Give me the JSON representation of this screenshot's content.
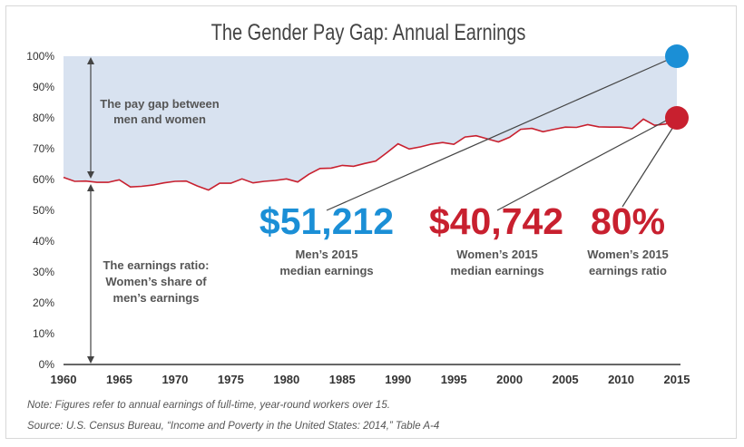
{
  "chart_data": {
    "type": "area",
    "title": "The Gender Pay Gap: Annual Earnings",
    "xlim": [
      1960,
      2015
    ],
    "ylim": [
      0,
      100
    ],
    "x_ticks": [
      1960,
      1965,
      1970,
      1975,
      1980,
      1985,
      1990,
      1995,
      2000,
      2005,
      2010,
      2015
    ],
    "y_ticks": [
      0,
      10,
      20,
      30,
      40,
      50,
      60,
      70,
      80,
      90,
      100
    ],
    "y_tick_labels": [
      "0%",
      "10%",
      "20%",
      "30%",
      "40%",
      "50%",
      "60%",
      "70%",
      "80%",
      "90%",
      "100%"
    ],
    "series": [
      {
        "color": "#c8202f",
        "x": [
          1960,
          1961,
          1962,
          1963,
          1964,
          1965,
          1966,
          1967,
          1968,
          1969,
          1970,
          1971,
          1972,
          1973,
          1974,
          1975,
          1976,
          1977,
          1978,
          1979,
          1980,
          1981,
          1982,
          1983,
          1984,
          1985,
          1986,
          1987,
          1988,
          1989,
          1990,
          1991,
          1992,
          1993,
          1994,
          1995,
          1996,
          1997,
          1998,
          1999,
          2000,
          2001,
          2002,
          2003,
          2004,
          2005,
          2006,
          2007,
          2008,
          2009,
          2010,
          2011,
          2012,
          2013,
          2014,
          2015
        ],
        "y": [
          60.7,
          59.4,
          59.5,
          59.1,
          59.1,
          59.9,
          57.6,
          57.8,
          58.2,
          58.9,
          59.4,
          59.5,
          57.9,
          56.6,
          58.8,
          58.8,
          60.2,
          58.9,
          59.4,
          59.7,
          60.2,
          59.2,
          61.7,
          63.6,
          63.7,
          64.6,
          64.3,
          65.2,
          66.0,
          68.7,
          71.6,
          69.9,
          70.6,
          71.5,
          72.0,
          71.4,
          73.8,
          74.2,
          73.2,
          72.2,
          73.7,
          76.3,
          76.6,
          75.5,
          76.3,
          77.0,
          76.9,
          77.8,
          77.1,
          77.0,
          77.0,
          76.5,
          79.6,
          77.6,
          78.0,
          79.6
        ]
      }
    ],
    "annotations": {
      "gap_label": "The pay gap between men and women",
      "ratio_label": "The earnings ratio: Women’s share of men’s earnings",
      "men_value": "$51,212",
      "men_caption": "Men’s 2015 median earnings",
      "women_value": "$40,742",
      "women_caption": "Women’s 2015 median earnings",
      "ratio_value": "80%",
      "ratio_caption": "Women’s 2015 earnings ratio",
      "men_point": {
        "x": 2015,
        "y": 100
      },
      "women_point": {
        "x": 2015,
        "y": 80
      }
    },
    "colors": {
      "gap_fill": "#d8e2f0",
      "women_line": "#c8202f",
      "men_dot": "#1b8fd6",
      "women_dot": "#c8202f",
      "text": "#555555"
    },
    "grid": false
  },
  "footer": {
    "note": "Note: Figures refer to annual earnings of full-time, year-round workers over 15.",
    "source": "Source: U.S. Census Bureau, “Income and Poverty in the United States: 2014,” Table A-4"
  }
}
